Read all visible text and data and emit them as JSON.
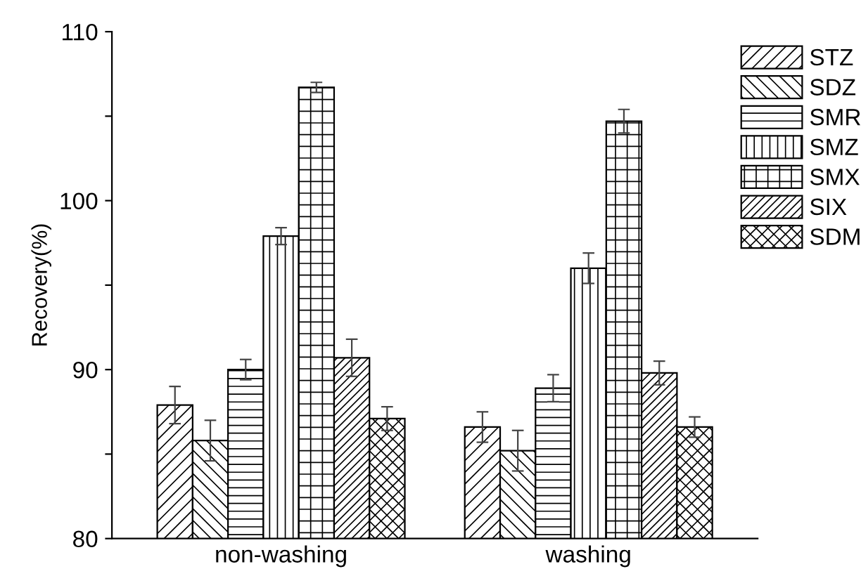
{
  "chart_data": {
    "type": "bar",
    "ylabel": "Recovery(%)",
    "categories": [
      "non-washing",
      "washing"
    ],
    "series": [
      {
        "name": "STZ",
        "color": "#000000",
        "values": [
          87.9,
          86.6
        ],
        "errors": [
          1.1,
          0.9
        ]
      },
      {
        "name": "SDZ",
        "color": "#000000",
        "values": [
          85.8,
          85.2
        ],
        "errors": [
          1.2,
          1.2
        ]
      },
      {
        "name": "SMR",
        "color": "#000000",
        "values": [
          90.0,
          88.9
        ],
        "errors": [
          0.6,
          0.8
        ]
      },
      {
        "name": "SMZ",
        "color": "#000000",
        "values": [
          97.9,
          96.0
        ],
        "errors": [
          0.5,
          0.9
        ]
      },
      {
        "name": "SMX",
        "color": "#000000",
        "values": [
          106.7,
          104.7
        ],
        "errors": [
          0.3,
          0.7
        ]
      },
      {
        "name": "SIX",
        "color": "#000000",
        "values": [
          90.7,
          89.8
        ],
        "errors": [
          1.1,
          0.7
        ]
      },
      {
        "name": "SDM",
        "color": "#000000",
        "values": [
          87.1,
          86.6
        ],
        "errors": [
          0.7,
          0.6
        ]
      }
    ],
    "ylim": [
      80,
      110
    ],
    "yticks": [
      80,
      {
        "value": 85,
        "label": null
      },
      90,
      {
        "value": 95,
        "label": null
      },
      100,
      {
        "value": 105,
        "label": null
      },
      110
    ],
    "grid": false,
    "legend": "top right"
  }
}
